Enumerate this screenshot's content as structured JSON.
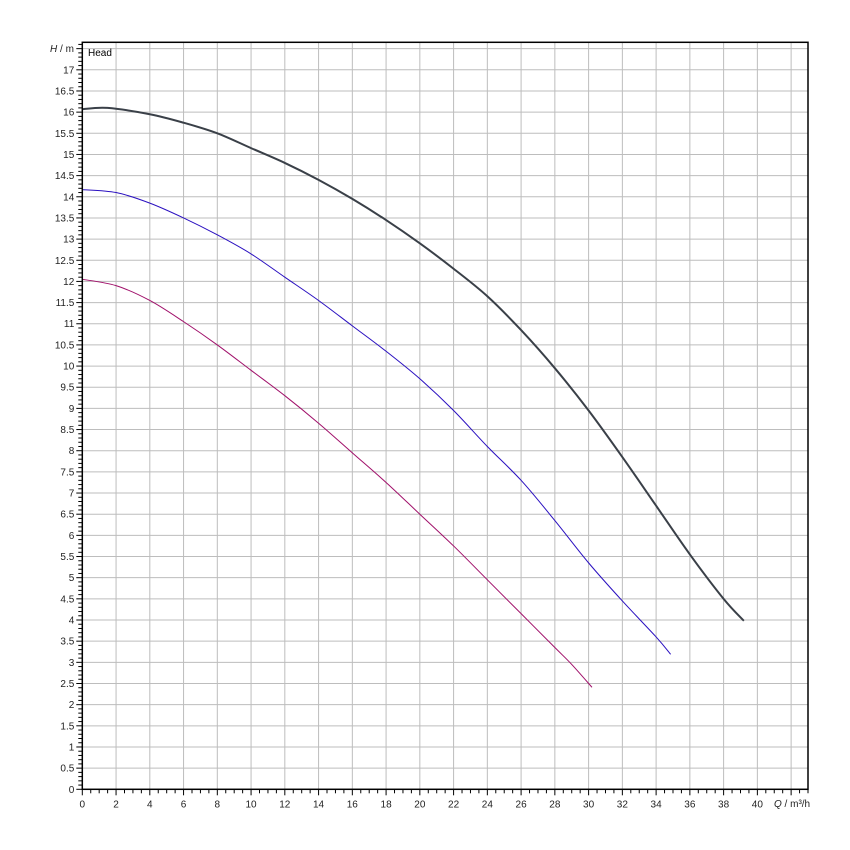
{
  "chart_data": {
    "type": "line",
    "title": "",
    "legend_text": "Head",
    "ylabel": {
      "symbol": "H",
      "unit": " / m"
    },
    "xlabel": {
      "symbol": "Q",
      "unit": " / m³/h"
    },
    "xlim": [
      0,
      43
    ],
    "ylim": [
      0,
      17.65
    ],
    "x_ticks": [
      0,
      2,
      4,
      6,
      8,
      10,
      12,
      14,
      16,
      18,
      20,
      22,
      24,
      26,
      28,
      30,
      32,
      34,
      36,
      38,
      40
    ],
    "y_ticks": [
      0,
      0.5,
      1,
      1.5,
      2,
      2.5,
      3,
      3.5,
      4,
      4.5,
      5,
      5.5,
      6,
      6.5,
      7,
      7.5,
      8,
      8.5,
      9,
      9.5,
      10,
      10.5,
      11,
      11.5,
      12,
      12.5,
      13,
      13.5,
      14,
      14.5,
      15,
      15.5,
      16,
      16.5,
      17
    ],
    "grid": true,
    "x_grid_step": 2,
    "y_grid_step": 0.5,
    "series": [
      {
        "color": "#3a4048",
        "width": 2,
        "x": [
          0,
          1.5,
          4,
          6,
          8,
          10,
          12,
          14,
          16,
          18,
          20,
          22,
          24,
          26,
          28,
          30,
          32,
          34,
          36,
          38,
          39.2
        ],
        "y": [
          16.07,
          16.1,
          15.95,
          15.75,
          15.5,
          15.15,
          14.8,
          14.4,
          13.95,
          13.45,
          12.9,
          12.3,
          11.65,
          10.85,
          9.95,
          8.95,
          7.85,
          6.7,
          5.55,
          4.5,
          3.98
        ]
      },
      {
        "color": "#2a10c0",
        "width": 1,
        "x": [
          0,
          2,
          4,
          6,
          8,
          10,
          12,
          14,
          16,
          18,
          20,
          22,
          24,
          26,
          28,
          30,
          32,
          34,
          34.86
        ],
        "y": [
          14.17,
          14.1,
          13.85,
          13.5,
          13.1,
          12.65,
          12.1,
          11.55,
          10.95,
          10.35,
          9.7,
          8.95,
          8.1,
          7.3,
          6.35,
          5.35,
          4.45,
          3.6,
          3.19
        ]
      },
      {
        "color": "#a0106a",
        "width": 1,
        "x": [
          0,
          2,
          4,
          6,
          8,
          10,
          12,
          14,
          16,
          18,
          20,
          22,
          24,
          26,
          28,
          29,
          30.2
        ],
        "y": [
          12.05,
          11.9,
          11.55,
          11.05,
          10.5,
          9.9,
          9.3,
          8.65,
          7.95,
          7.25,
          6.5,
          5.75,
          4.95,
          4.15,
          3.35,
          2.95,
          2.41
        ]
      }
    ]
  }
}
